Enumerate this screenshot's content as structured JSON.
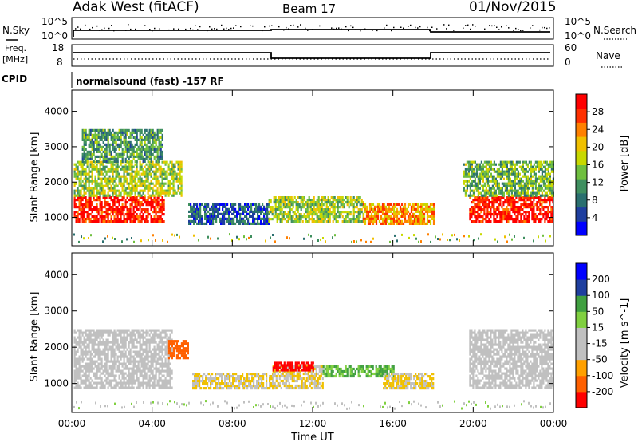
{
  "header": {
    "station": "Adak West (fitACF)",
    "beam": "Beam 17",
    "date": "01/Nov/2015"
  },
  "sky_panel": {
    "left_label": "N.Sky",
    "left_ticks": [
      "10^5",
      "10^0"
    ],
    "right_ticks": [
      "10^5",
      "10^0"
    ],
    "right_label": "N.Search"
  },
  "freq_panel": {
    "left_label_1": "Freq.",
    "left_label_2": "[MHz]",
    "left_ticks": [
      "18",
      "8"
    ],
    "right_ticks": [
      "60",
      "0"
    ],
    "right_label": "Nave"
  },
  "cpid_panel": {
    "left_label": "CPID",
    "program": "normalsound (fast) -157 RF"
  },
  "colors": {
    "power_scale": [
      "#0000ff",
      "#1f3f9f",
      "#2a6f6f",
      "#3f8f5f",
      "#6fbf3f",
      "#c8d800",
      "#f0c000",
      "#ff8000",
      "#ff3000",
      "#ff0000"
    ],
    "velocity_scale": [
      "#ff0000",
      "#ff6000",
      "#ffa000",
      "#f0c000",
      "#c0c0c0",
      "#c0c0c0",
      "#80d040",
      "#40a040",
      "#2a6f6f",
      "#1f3f9f",
      "#0000ff"
    ]
  },
  "chart_data": [
    {
      "type": "heatmap",
      "panel": "power",
      "xlabel": "Time UT",
      "ylabel": "Slant Range [km]",
      "x_ticks": [
        "00:00",
        "04:00",
        "08:00",
        "12:00",
        "16:00",
        "20:00",
        "00:00"
      ],
      "xlim_hours": [
        0,
        24
      ],
      "y_ticks": [
        1000,
        2000,
        3000,
        4000
      ],
      "ylim": [
        200,
        4600
      ],
      "colorbar": {
        "label": "Power [dB]",
        "ticks": [
          4,
          8,
          12,
          16,
          20,
          24,
          28
        ]
      },
      "regions": [
        {
          "start_hr": 0.1,
          "end_hr": 4.6,
          "range_km": [
            900,
            1600
          ],
          "value": 28
        },
        {
          "start_hr": 0.1,
          "end_hr": 5.5,
          "range_km": [
            1600,
            2600
          ],
          "value": 16
        },
        {
          "start_hr": 0.5,
          "end_hr": 4.5,
          "range_km": [
            2600,
            3500
          ],
          "value": 12
        },
        {
          "start_hr": 5.8,
          "end_hr": 9.8,
          "range_km": [
            850,
            1400
          ],
          "value": 8
        },
        {
          "start_hr": 9.8,
          "end_hr": 14.5,
          "range_km": [
            900,
            1600
          ],
          "value": 16
        },
        {
          "start_hr": 14.5,
          "end_hr": 18.0,
          "range_km": [
            850,
            1400
          ],
          "value": 22
        },
        {
          "start_hr": 19.8,
          "end_hr": 24.0,
          "range_km": [
            900,
            1600
          ],
          "value": 28
        },
        {
          "start_hr": 19.5,
          "end_hr": 24.0,
          "range_km": [
            1600,
            2600
          ],
          "value": 14
        }
      ]
    },
    {
      "type": "heatmap",
      "panel": "velocity",
      "xlabel": "Time UT",
      "ylabel": "Slant Range [km]",
      "x_ticks": [
        "00:00",
        "04:00",
        "08:00",
        "12:00",
        "16:00",
        "20:00",
        "00:00"
      ],
      "xlim_hours": [
        0,
        24
      ],
      "y_ticks": [
        1000,
        2000,
        3000,
        4000
      ],
      "ylim": [
        200,
        4600
      ],
      "colorbar": {
        "label": "Velocity [m s^-1]",
        "ticks": [
          -200,
          -100,
          -50,
          -15,
          15,
          50,
          100,
          200
        ]
      },
      "regions": [
        {
          "start_hr": 0.1,
          "end_hr": 5.0,
          "range_km": [
            900,
            2500
          ],
          "value": 0
        },
        {
          "start_hr": 4.8,
          "end_hr": 5.8,
          "range_km": [
            1700,
            2200
          ],
          "value": -150
        },
        {
          "start_hr": 6.0,
          "end_hr": 10.0,
          "range_km": [
            850,
            1300
          ],
          "value": -60
        },
        {
          "start_hr": 10.0,
          "end_hr": 12.5,
          "range_km": [
            900,
            1500
          ],
          "value": -60
        },
        {
          "start_hr": 10.0,
          "end_hr": 12.0,
          "range_km": [
            1400,
            1600
          ],
          "value": -200
        },
        {
          "start_hr": 12.5,
          "end_hr": 16.0,
          "range_km": [
            1200,
            1500
          ],
          "value": 60
        },
        {
          "start_hr": 15.5,
          "end_hr": 18.0,
          "range_km": [
            850,
            1300
          ],
          "value": -60
        },
        {
          "start_hr": 19.8,
          "end_hr": 24.0,
          "range_km": [
            900,
            2500
          ],
          "value": 0
        }
      ]
    }
  ]
}
